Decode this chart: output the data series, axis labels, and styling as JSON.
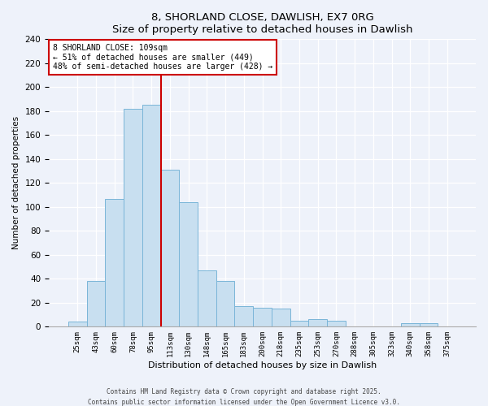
{
  "title": "8, SHORLAND CLOSE, DAWLISH, EX7 0RG",
  "subtitle": "Size of property relative to detached houses in Dawlish",
  "xlabel": "Distribution of detached houses by size in Dawlish",
  "ylabel": "Number of detached properties",
  "bar_labels": [
    "25sqm",
    "43sqm",
    "60sqm",
    "78sqm",
    "95sqm",
    "113sqm",
    "130sqm",
    "148sqm",
    "165sqm",
    "183sqm",
    "200sqm",
    "218sqm",
    "235sqm",
    "253sqm",
    "270sqm",
    "288sqm",
    "305sqm",
    "323sqm",
    "340sqm",
    "358sqm",
    "375sqm"
  ],
  "bar_values": [
    4,
    38,
    107,
    182,
    185,
    131,
    104,
    47,
    38,
    17,
    16,
    15,
    5,
    6,
    5,
    0,
    0,
    0,
    3,
    3,
    0
  ],
  "bar_color": "#c8dff0",
  "bar_edge_color": "#7ab5d8",
  "ylim": [
    0,
    240
  ],
  "yticks": [
    0,
    20,
    40,
    60,
    80,
    100,
    120,
    140,
    160,
    180,
    200,
    220,
    240
  ],
  "vline_x_index": 5,
  "vline_color": "#cc0000",
  "annotation_title": "8 SHORLAND CLOSE: 109sqm",
  "annotation_line1": "← 51% of detached houses are smaller (449)",
  "annotation_line2": "48% of semi-detached houses are larger (428) →",
  "annotation_box_color": "#ffffff",
  "annotation_box_edge": "#cc0000",
  "bg_color": "#eef2fa",
  "footer1": "Contains HM Land Registry data © Crown copyright and database right 2025.",
  "footer2": "Contains public sector information licensed under the Open Government Licence v3.0."
}
